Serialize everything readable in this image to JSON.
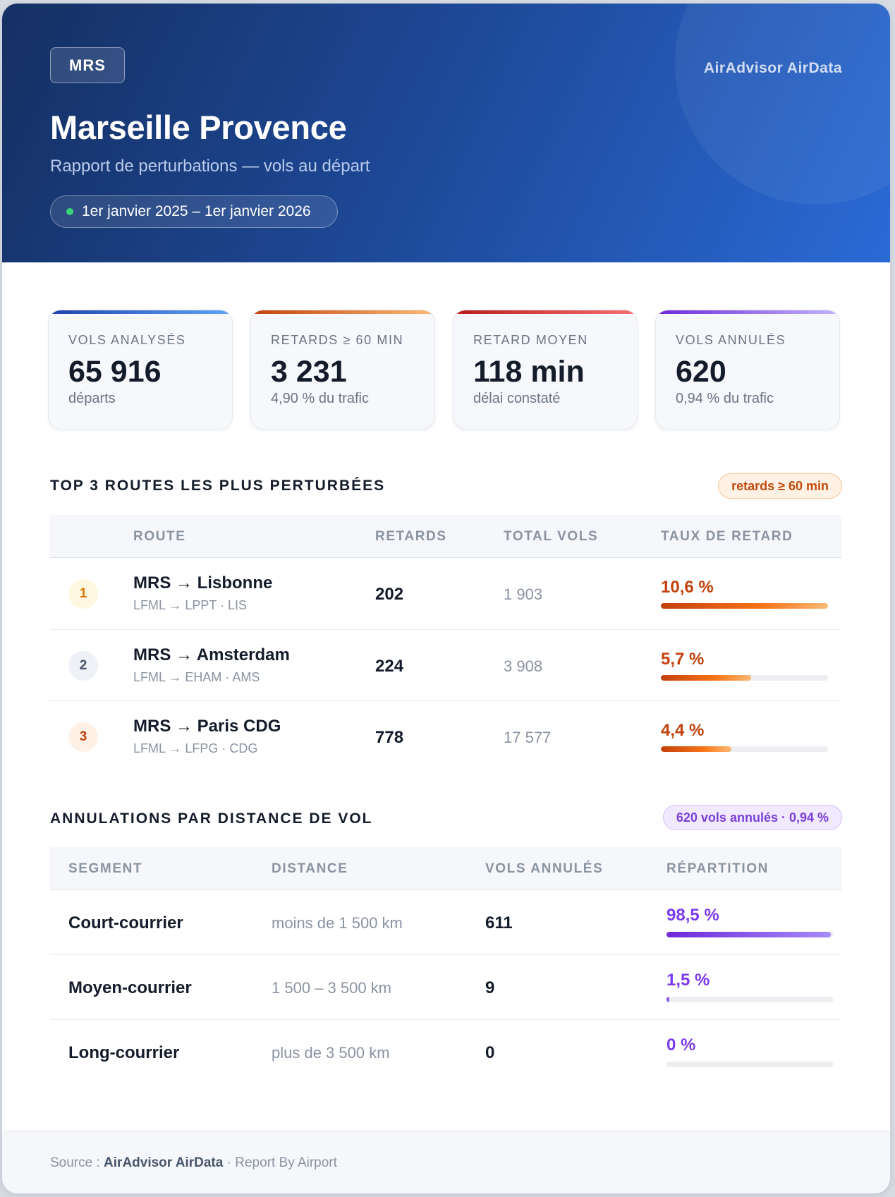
{
  "header": {
    "code": "MRS",
    "brand": "AirAdvisor AirData",
    "title": "Marseille Provence",
    "subtitle": "Rapport de perturbations — vols au départ",
    "period": "1er janvier 2025 – 1er janvier 2026"
  },
  "kpis": [
    {
      "label": "Vols analysés",
      "value": "65 916",
      "sub": "départs",
      "accent": "#2563eb"
    },
    {
      "label": "Retards ≥ 60 min",
      "value": "3 231",
      "sub": "4,90 % du trafic",
      "accent": "#ea580c"
    },
    {
      "label": "Retard moyen",
      "value": "118 min",
      "sub": "délai constaté",
      "accent": "#dc2626"
    },
    {
      "label": "Vols annulés",
      "value": "620",
      "sub": "0,94 % du trafic",
      "accent": "#7c3aed"
    }
  ],
  "routes_section": {
    "title": "Top 3 routes les plus perturbées",
    "tag": "retards ≥ 60 min",
    "columns": [
      "Route",
      "Retards",
      "Total vols",
      "Taux de retard"
    ],
    "rows": [
      {
        "rank": "1",
        "route": "MRS → Lisbonne",
        "codes": "LFML → LPPT · LIS",
        "delays": "202",
        "total": "1 903",
        "rate": "10,6 %",
        "level": 1.0
      },
      {
        "rank": "2",
        "route": "MRS → Amsterdam",
        "codes": "LFML → EHAM · AMS",
        "delays": "224",
        "total": "3 908",
        "rate": "5,7 %",
        "level": 0.54
      },
      {
        "rank": "3",
        "route": "MRS → Paris CDG",
        "codes": "LFML → LFPG · CDG",
        "delays": "778",
        "total": "17 577",
        "rate": "4,4 %",
        "level": 0.42
      }
    ]
  },
  "cancel_section": {
    "title": "Annulations par distance de vol",
    "tag": "620 vols annulés · 0,94 %",
    "columns": [
      "Segment",
      "Distance",
      "Vols annulés",
      "Répartition"
    ],
    "rows": [
      {
        "segment": "Court-courrier",
        "distance": "moins de 1 500 km",
        "cancelled": "611",
        "share": "98,5 %",
        "level": 0.985
      },
      {
        "segment": "Moyen-courrier",
        "distance": "1 500 – 3 500 km",
        "cancelled": "9",
        "share": "1,5 %",
        "level": 0.015
      },
      {
        "segment": "Long-courrier",
        "distance": "plus de 3 500 km",
        "cancelled": "0",
        "share": "0 %",
        "level": 0
      }
    ]
  },
  "footer": {
    "prefix": "Source : ",
    "brand": "AirAdvisor AirData",
    "suffix": " · Report By Airport"
  }
}
